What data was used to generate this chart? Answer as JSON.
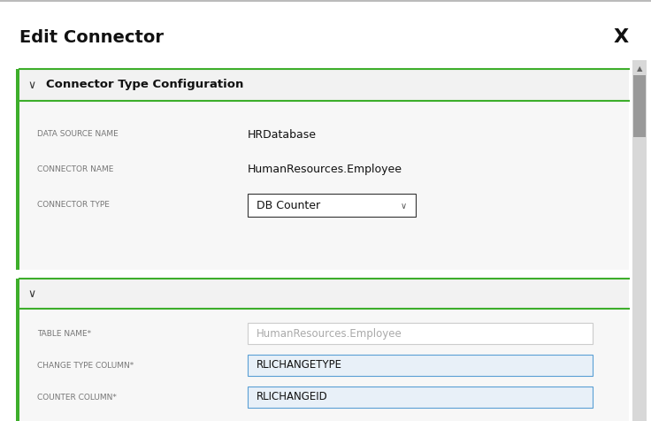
{
  "title": "Edit Connector",
  "close_symbol": "X",
  "section1_header": "Connector Type Configuration",
  "fields_section1": [
    {
      "label": "DATA SOURCE NAME",
      "value": "HRDatabase",
      "type": "text"
    },
    {
      "label": "CONNECTOR NAME",
      "value": "HumanResources.Employee",
      "type": "text"
    },
    {
      "label": "CONNECTOR TYPE",
      "value": "DB Counter",
      "type": "dropdown"
    }
  ],
  "fields_section2": [
    {
      "label": "TABLE NAME*",
      "value": "HumanResources.Employee",
      "type": "input_placeholder"
    },
    {
      "label": "CHANGE TYPE COLUMN*",
      "value": "RLICHANGETYPE",
      "type": "input_filled"
    },
    {
      "label": "COUNTER COLUMN*",
      "value": "RLICHANGEID",
      "type": "input_filled"
    }
  ],
  "bg_color": "#ffffff",
  "panel_bg": "#f2f2f2",
  "content_bg": "#f7f7f7",
  "green_accent": "#3dae2b",
  "label_color": "#777777",
  "value_color": "#111111",
  "placeholder_color": "#aaaaaa",
  "input_bg": "#e8f0f8",
  "input_border": "#5a9fd4",
  "dropdown_border": "#333333",
  "title_color": "#111111",
  "header_color": "#111111",
  "scrollbar_track": "#d8d8d8",
  "scrollbar_thumb": "#999999",
  "top_border_color": "#bbbbbb"
}
